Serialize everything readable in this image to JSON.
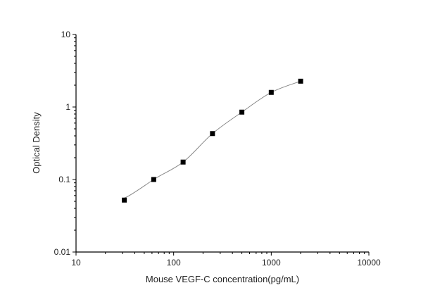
{
  "chart_data": {
    "type": "scatter",
    "title": "",
    "xlabel": "Mouse VEGF-C concentration(pg/mL)",
    "ylabel": "Optical Density",
    "xscale": "log",
    "yscale": "log",
    "xlim": [
      10,
      10000
    ],
    "ylim": [
      0.01,
      10
    ],
    "xticks": [
      "10",
      "100",
      "1000",
      "10000"
    ],
    "yticks": [
      "0.01",
      "0.1",
      "1",
      "10"
    ],
    "grid": false,
    "legend": "none",
    "fit_curve": true,
    "marker_color": "#000000",
    "curve_color": "#888888",
    "points": {
      "x": [
        31.25,
        62.5,
        125,
        250,
        500,
        1000,
        2000
      ],
      "y": [
        0.052,
        0.1,
        0.174,
        0.43,
        0.85,
        1.59,
        2.27
      ]
    }
  }
}
